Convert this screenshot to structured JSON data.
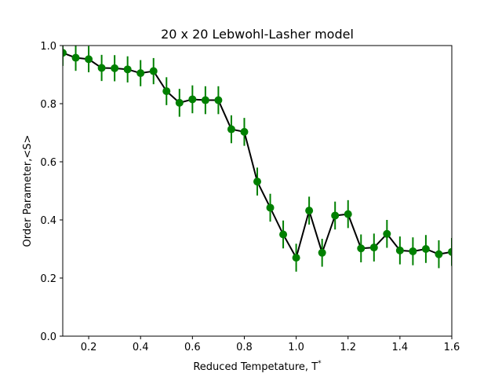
{
  "chart_data": {
    "type": "line",
    "title": "20 x 20 Lebwohl-Lasher model",
    "xlabel": "Reduced Tempetature, T",
    "xlabel_superscript": "*",
    "ylabel": "Order Parameter,<S>",
    "xlim": [
      0.1,
      1.6
    ],
    "ylim": [
      0.0,
      1.0
    ],
    "xticks": [
      0.2,
      0.4,
      0.6,
      0.8,
      1.0,
      1.2,
      1.4,
      1.6
    ],
    "xtick_labels": [
      "0.2",
      "0.4",
      "0.6",
      "0.8",
      "1.0",
      "1.2",
      "1.4",
      "1.6"
    ],
    "yticks": [
      0.0,
      0.2,
      0.4,
      0.6,
      0.8,
      1.0
    ],
    "ytick_labels": [
      "0.0",
      "0.2",
      "0.4",
      "0.6",
      "0.8",
      "1.0"
    ],
    "grid": false,
    "line_color": "#000000",
    "marker_color": "#008000",
    "errorbar_color": "#008000",
    "series": [
      {
        "x": [
          0.1,
          0.15,
          0.2,
          0.25,
          0.3,
          0.35,
          0.4,
          0.45,
          0.5,
          0.55,
          0.6,
          0.65,
          0.7,
          0.75,
          0.8,
          0.85,
          0.9,
          0.95,
          1.0,
          1.05,
          1.1,
          1.15,
          1.2,
          1.25,
          1.3,
          1.35,
          1.4,
          1.45,
          1.5,
          1.55,
          1.6
        ],
        "y": [
          0.975,
          0.958,
          0.953,
          0.923,
          0.922,
          0.918,
          0.905,
          0.912,
          0.843,
          0.803,
          0.815,
          0.812,
          0.812,
          0.712,
          0.703,
          0.532,
          0.442,
          0.35,
          0.27,
          0.432,
          0.287,
          0.415,
          0.42,
          0.302,
          0.305,
          0.352,
          0.295,
          0.292,
          0.3,
          0.282,
          0.29
        ],
        "yerr": [
          0.045,
          0.045,
          0.045,
          0.045,
          0.045,
          0.045,
          0.045,
          0.045,
          0.048,
          0.048,
          0.048,
          0.048,
          0.048,
          0.048,
          0.048,
          0.048,
          0.048,
          0.048,
          0.048,
          0.048,
          0.048,
          0.048,
          0.048,
          0.048,
          0.048,
          0.048,
          0.048,
          0.048,
          0.048,
          0.048,
          0.048
        ]
      }
    ]
  }
}
